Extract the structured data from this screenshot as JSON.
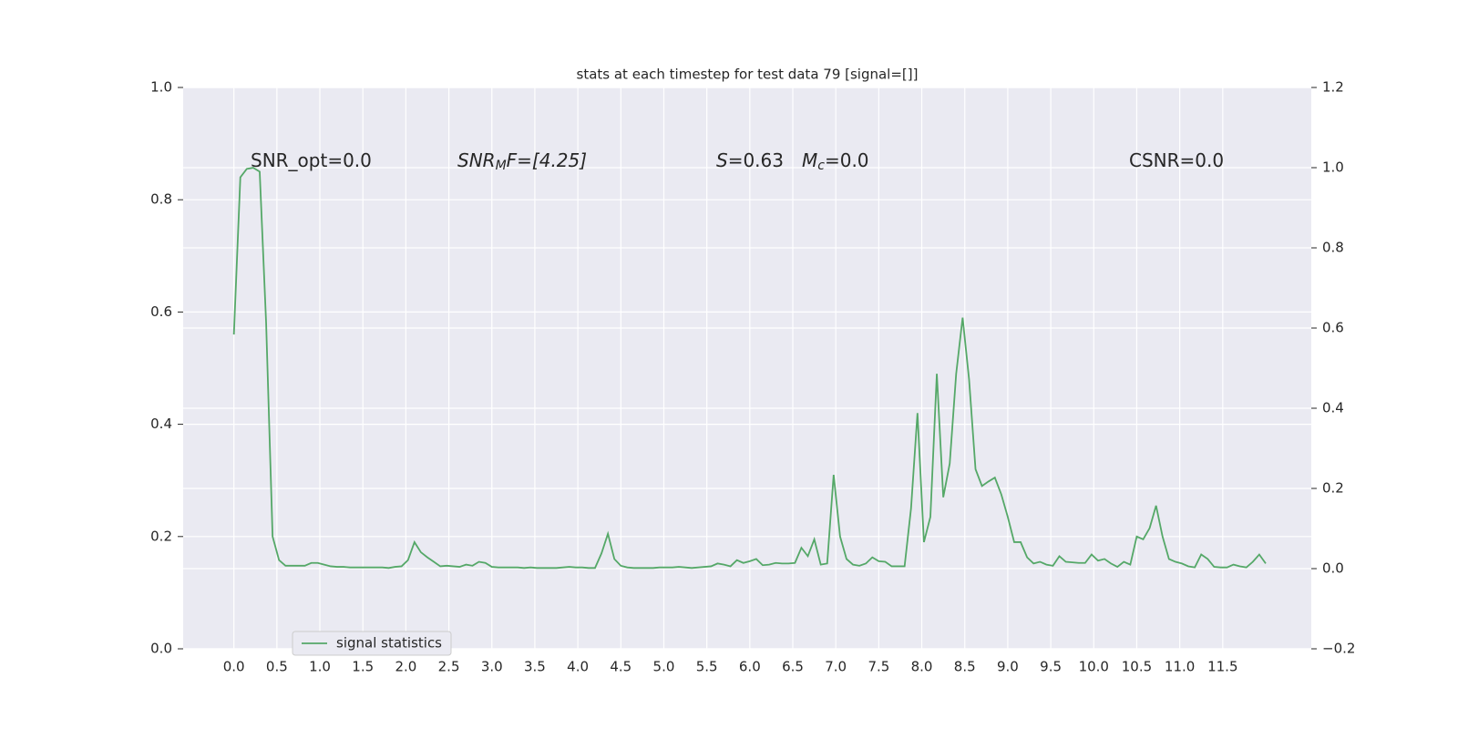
{
  "chart_data": {
    "type": "line",
    "title": "stats at each timestep for test data 79 [signal=[]]",
    "x": [
      0,
      0.075,
      0.15,
      0.225,
      0.3,
      0.375,
      0.45,
      0.525,
      0.6,
      0.675,
      0.75,
      0.825,
      0.9,
      0.975,
      1.05,
      1.125,
      1.2,
      1.275,
      1.35,
      1.425,
      1.5,
      1.575,
      1.65,
      1.725,
      1.8,
      1.875,
      1.95,
      2.025,
      2.1,
      2.175,
      2.25,
      2.325,
      2.4,
      2.475,
      2.55,
      2.625,
      2.7,
      2.775,
      2.85,
      2.925,
      3,
      3.075,
      3.15,
      3.225,
      3.3,
      3.375,
      3.45,
      3.525,
      3.6,
      3.675,
      3.75,
      3.825,
      3.9,
      3.975,
      4.05,
      4.125,
      4.2,
      4.275,
      4.35,
      4.425,
      4.5,
      4.575,
      4.65,
      4.725,
      4.8,
      4.875,
      4.95,
      5.025,
      5.1,
      5.175,
      5.25,
      5.325,
      5.4,
      5.475,
      5.55,
      5.625,
      5.7,
      5.775,
      5.85,
      5.925,
      6,
      6.075,
      6.15,
      6.225,
      6.3,
      6.375,
      6.45,
      6.525,
      6.6,
      6.675,
      6.75,
      6.825,
      6.9,
      6.975,
      7.05,
      7.125,
      7.2,
      7.275,
      7.35,
      7.425,
      7.5,
      7.575,
      7.65,
      7.725,
      7.8,
      7.875,
      7.95,
      8.025,
      8.1,
      8.175,
      8.25,
      8.325,
      8.4,
      8.475,
      8.55,
      8.625,
      8.7,
      8.775,
      8.85,
      8.925,
      9,
      9.075,
      9.15,
      9.225,
      9.3,
      9.375,
      9.45,
      9.525,
      9.6,
      9.675,
      9.75,
      9.825,
      9.9,
      9.975,
      10.05,
      10.125,
      10.2,
      10.275,
      10.35,
      10.425,
      10.5,
      10.575,
      10.65,
      10.725,
      10.8,
      10.875,
      10.95,
      11.025,
      11.1,
      11.175,
      11.25,
      11.325,
      11.4,
      11.475,
      11.55,
      11.625,
      11.7,
      11.775,
      11.85,
      11.925,
      12
    ],
    "series": [
      {
        "name": "signal statistics",
        "color": "#55a868",
        "values": [
          0.56,
          0.84,
          0.855,
          0.857,
          0.85,
          0.58,
          0.2,
          0.158,
          0.148,
          0.148,
          0.148,
          0.148,
          0.153,
          0.153,
          0.15,
          0.147,
          0.146,
          0.146,
          0.145,
          0.145,
          0.145,
          0.145,
          0.145,
          0.145,
          0.144,
          0.146,
          0.147,
          0.158,
          0.19,
          0.172,
          0.163,
          0.155,
          0.147,
          0.148,
          0.147,
          0.146,
          0.15,
          0.148,
          0.155,
          0.153,
          0.146,
          0.145,
          0.145,
          0.145,
          0.145,
          0.144,
          0.145,
          0.144,
          0.144,
          0.144,
          0.144,
          0.145,
          0.146,
          0.145,
          0.145,
          0.144,
          0.144,
          0.17,
          0.205,
          0.16,
          0.148,
          0.145,
          0.144,
          0.144,
          0.144,
          0.144,
          0.145,
          0.145,
          0.145,
          0.146,
          0.145,
          0.144,
          0.145,
          0.146,
          0.147,
          0.152,
          0.15,
          0.147,
          0.158,
          0.153,
          0.156,
          0.16,
          0.149,
          0.15,
          0.153,
          0.152,
          0.152,
          0.153,
          0.18,
          0.165,
          0.195,
          0.15,
          0.152,
          0.31,
          0.2,
          0.16,
          0.15,
          0.148,
          0.152,
          0.163,
          0.156,
          0.155,
          0.147,
          0.147,
          0.147,
          0.25,
          0.42,
          0.19,
          0.235,
          0.49,
          0.27,
          0.33,
          0.49,
          0.59,
          0.48,
          0.32,
          0.29,
          0.298,
          0.305,
          0.275,
          0.235,
          0.19,
          0.19,
          0.163,
          0.152,
          0.155,
          0.15,
          0.148,
          0.165,
          0.155,
          0.154,
          0.153,
          0.153,
          0.168,
          0.157,
          0.16,
          0.152,
          0.146,
          0.155,
          0.15,
          0.2,
          0.195,
          0.215,
          0.255,
          0.2,
          0.16,
          0.155,
          0.152,
          0.147,
          0.145,
          0.168,
          0.16,
          0.146,
          0.145,
          0.145,
          0.15,
          0.147,
          0.145,
          0.155,
          0.168,
          0.152
        ]
      }
    ],
    "xlim": [
      -0.59,
      12.53
    ],
    "xticks": [
      {
        "value": 0,
        "label": "0.0"
      },
      0.5,
      {
        "value": 1,
        "label": "1.0"
      },
      1.5,
      {
        "value": 2,
        "label": "2.0"
      },
      2.5,
      {
        "value": 3,
        "label": "3.0"
      },
      3.5,
      {
        "value": 4,
        "label": "4.0"
      },
      4.5,
      {
        "value": 5,
        "label": "5.0"
      },
      5.5,
      {
        "value": 6,
        "label": "6.0"
      },
      6.5,
      {
        "value": 7,
        "label": "7.0"
      },
      7.5,
      {
        "value": 8,
        "label": "8.0"
      },
      8.5,
      {
        "value": 9,
        "label": "9.0"
      },
      9.5,
      {
        "value": 10,
        "label": "10.0"
      },
      10.5,
      {
        "value": 11,
        "label": "11.0"
      },
      11.5
    ],
    "ylim": [
      0,
      1
    ],
    "yticks": [
      {
        "value": 0,
        "label": "0.0"
      },
      0.2,
      0.4,
      0.6,
      0.8,
      {
        "value": 1,
        "label": "1.0"
      }
    ],
    "y2lim": [
      -0.2,
      1.2
    ],
    "y2ticks": [
      {
        "value": -0.2,
        "label": "−0.2"
      },
      {
        "value": 0,
        "label": "0.0"
      },
      0.2,
      0.4,
      0.6,
      0.8,
      {
        "value": 1,
        "label": "1.0"
      },
      1.2
    ],
    "grid": true,
    "legend": "lower left",
    "annotations": [
      {
        "text": "SNR_opt=0.0"
      },
      {
        "main": "SNR",
        "sub": "M",
        "rest": "F=[4.25]"
      },
      {
        "main": "S",
        "rest": "=0.63"
      },
      {
        "main": "M",
        "sub": "c",
        "rest": "=0.0"
      },
      {
        "text": "CSNR=0.0"
      }
    ]
  }
}
